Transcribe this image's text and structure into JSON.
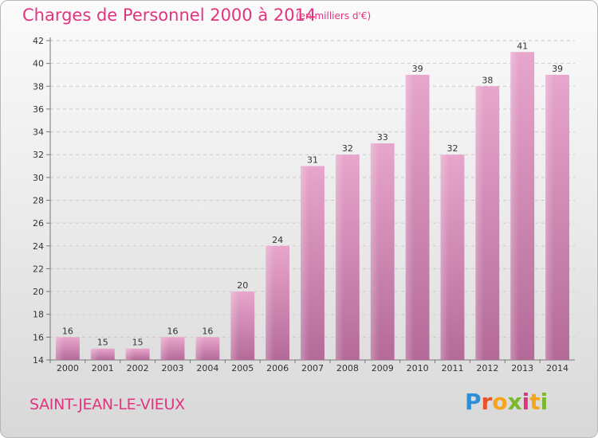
{
  "header": {
    "title": "Charges de Personnel 2000 à 2014",
    "subtitle": "(en milliers d'€)"
  },
  "footer": {
    "city": "SAINT-JEAN-LE-VIEUX",
    "logo_parts": [
      "P",
      "r",
      "o",
      "x",
      "i",
      "t",
      "i"
    ]
  },
  "colors": {
    "accent": "#e1347f",
    "bar_top": "#e8a6cc",
    "bar_bottom": "#b46a98"
  },
  "chart_data": {
    "type": "bar",
    "title": "Charges de Personnel 2000 à 2014",
    "subtitle": "(en milliers d'€)",
    "categories": [
      "2000",
      "2001",
      "2002",
      "2003",
      "2004",
      "2005",
      "2006",
      "2007",
      "2008",
      "2009",
      "2010",
      "2011",
      "2012",
      "2013",
      "2014"
    ],
    "values": [
      16,
      15,
      15,
      16,
      16,
      20,
      24,
      31,
      32,
      33,
      39,
      32,
      38,
      41,
      39
    ],
    "ylim": [
      14,
      42
    ],
    "yticks": [
      14,
      16,
      18,
      20,
      22,
      24,
      26,
      28,
      30,
      32,
      34,
      36,
      38,
      40,
      42
    ],
    "grid": true,
    "legend": "none",
    "data_labels": true
  }
}
